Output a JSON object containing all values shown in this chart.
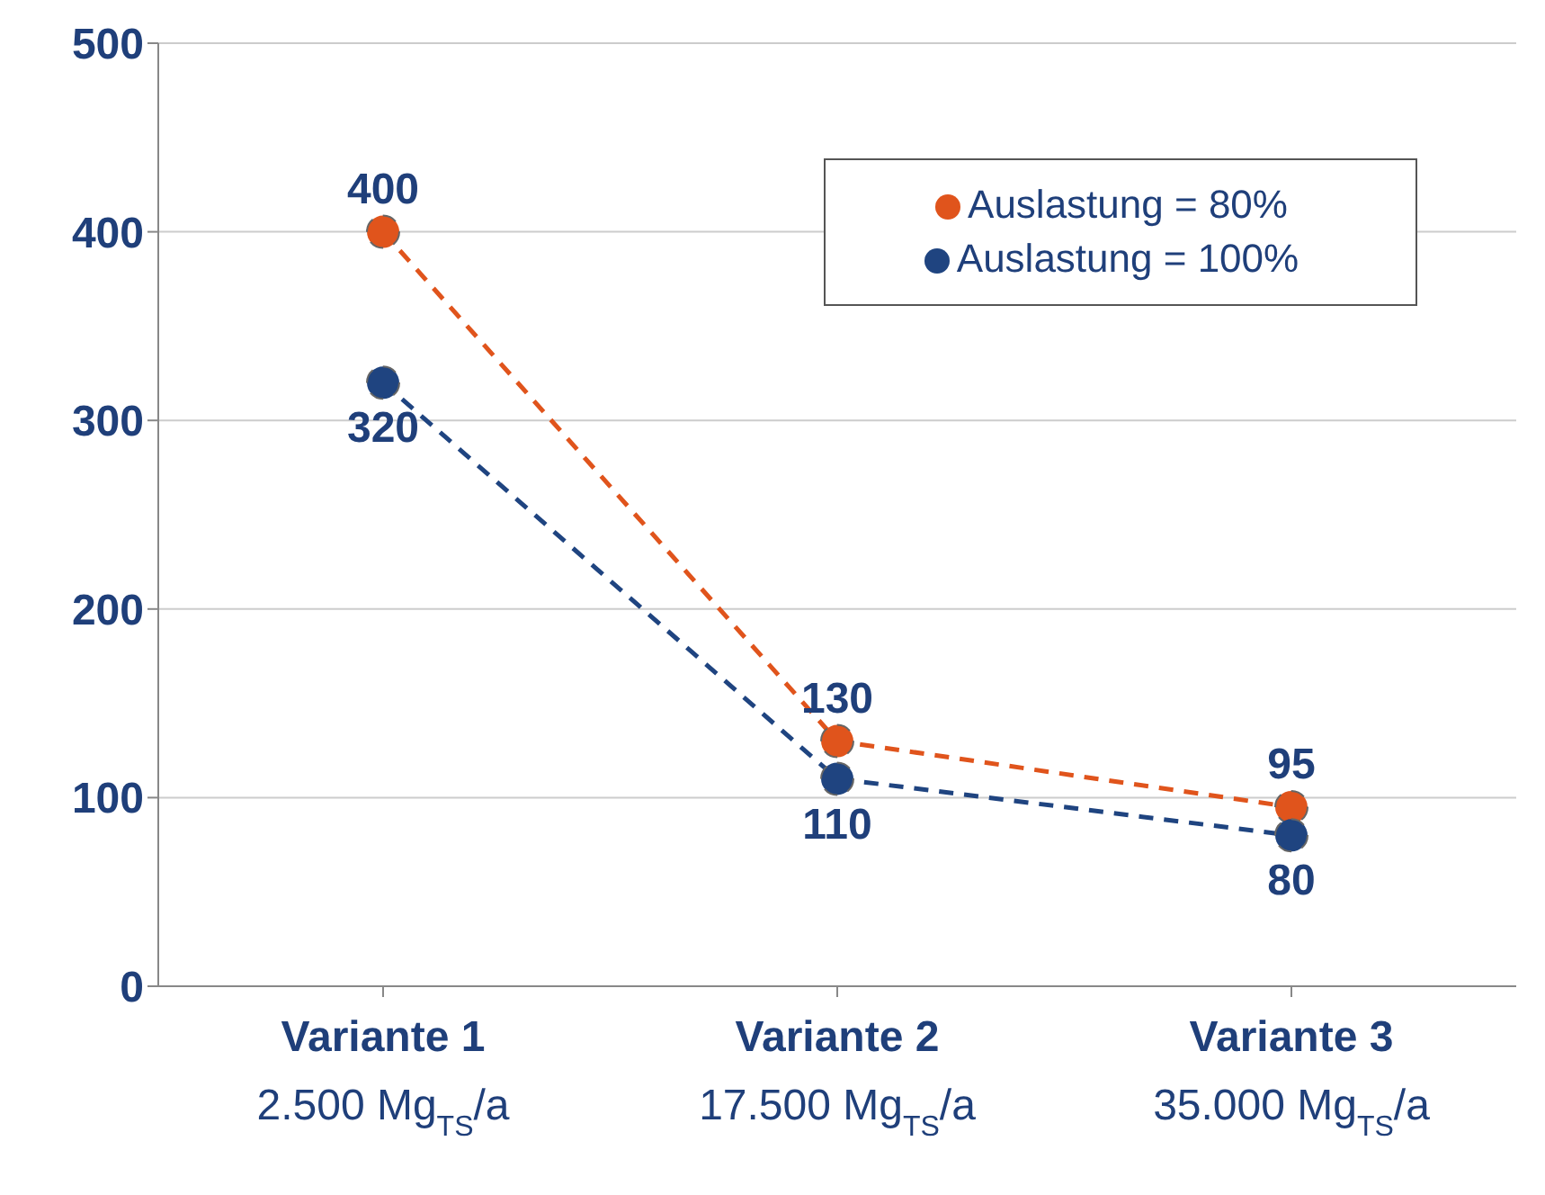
{
  "chart_data": {
    "type": "line",
    "categories": [
      "Variante 1\n2.500 Mg$_{TS}$/a",
      "Variante 2\n17.500 Mg$_{TS}$/a",
      "Variante 3\n35.000 Mg$_{TS}$/a"
    ],
    "series": [
      {
        "name": "Auslastung =   80%",
        "color": "#e0541c",
        "values": [
          400,
          130,
          95
        ]
      },
      {
        "name": "Auslastung = 100%",
        "color": "#1f4480",
        "values": [
          320,
          110,
          80
        ]
      }
    ],
    "ylim": [
      0,
      500
    ],
    "yticks": [
      0,
      100,
      200,
      300,
      400,
      500
    ],
    "grid": "y",
    "legend": "top right",
    "marker": "circle",
    "line_style": "dashed",
    "data_labels": true
  }
}
